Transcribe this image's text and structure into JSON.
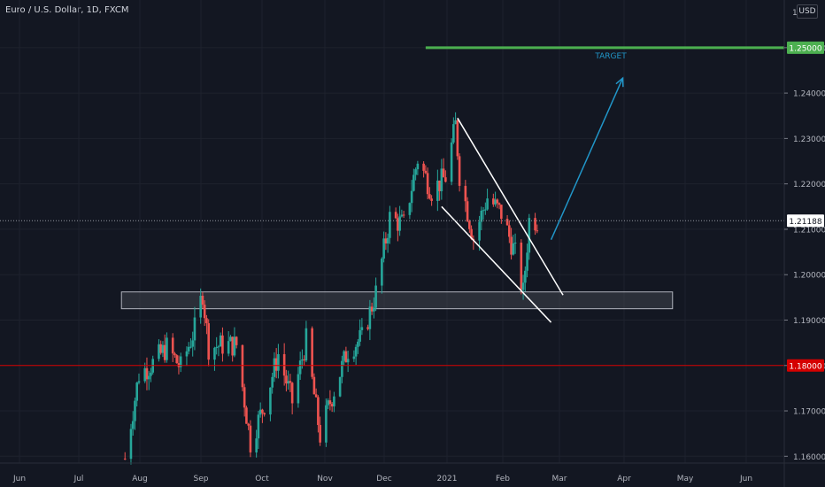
{
  "symbol_title": "Euro / U.S. Dollar, 1D, FXCM",
  "currency_button": "USD",
  "price_axis_top_label": "1",
  "colors": {
    "background": "#131722",
    "up": "#26a69a",
    "down": "#ef5350",
    "target_line": "#4caf50",
    "support_line": "#d50000",
    "projection_arrow": "#2196c9",
    "channel_lines": "#ffffff",
    "zone_fill": "#4a4d56"
  },
  "annotations": {
    "target_label": "TARGET",
    "target_price_label": "1.25000",
    "support_price_label": "1.18000",
    "current_price_label": "1.21188"
  },
  "chart_data": {
    "type": "candlestick",
    "x_axis_ticks": [
      "Jun",
      "Jul",
      "Aug",
      "Sep",
      "Oct",
      "Nov",
      "Dec",
      "2021",
      "Feb",
      "Mar",
      "Apr",
      "May",
      "Jun"
    ],
    "y_axis_ticks": [
      "1.16000",
      "1.17000",
      "1.18000",
      "1.19000",
      "1.20000",
      "1.21000",
      "1.22000",
      "1.23000",
      "1.24000",
      "1.25000"
    ],
    "ylim": [
      1.1585,
      1.2605
    ],
    "target_price": 1.25,
    "support_price": 1.18,
    "current_price": 1.21188,
    "zone": [
      1.1925,
      1.1962
    ],
    "series": [
      {
        "date": "2020-07-24",
        "close": 1.1595
      },
      {
        "date": "2020-07-31",
        "close": 1.178
      },
      {
        "date": "2020-08-07",
        "close": 1.1805
      },
      {
        "date": "2020-08-14",
        "close": 1.184
      },
      {
        "date": "2020-08-21",
        "close": 1.1795
      },
      {
        "date": "2020-08-28",
        "close": 1.188
      },
      {
        "date": "2020-09-01",
        "close": 1.196
      },
      {
        "date": "2020-09-04",
        "close": 1.184
      },
      {
        "date": "2020-09-11",
        "close": 1.1845
      },
      {
        "date": "2020-09-18",
        "close": 1.1845
      },
      {
        "date": "2020-09-25",
        "close": 1.163
      },
      {
        "date": "2020-10-02",
        "close": 1.1715
      },
      {
        "date": "2020-10-09",
        "close": 1.1825
      },
      {
        "date": "2020-10-16",
        "close": 1.172
      },
      {
        "date": "2020-10-23",
        "close": 1.1855
      },
      {
        "date": "2020-10-30",
        "close": 1.1645
      },
      {
        "date": "2020-11-04",
        "close": 1.172
      },
      {
        "date": "2020-11-13",
        "close": 1.1835
      },
      {
        "date": "2020-11-20",
        "close": 1.186
      },
      {
        "date": "2020-11-27",
        "close": 1.196
      },
      {
        "date": "2020-12-04",
        "close": 1.2125
      },
      {
        "date": "2020-12-11",
        "close": 1.211
      },
      {
        "date": "2020-12-18",
        "close": 1.2255
      },
      {
        "date": "2020-12-25",
        "close": 1.2185
      },
      {
        "date": "2021-01-01",
        "close": 1.2215
      },
      {
        "date": "2021-01-06",
        "close": 1.233
      },
      {
        "date": "2021-01-08",
        "close": 1.222
      },
      {
        "date": "2021-01-15",
        "close": 1.208
      },
      {
        "date": "2021-01-22",
        "close": 1.217
      },
      {
        "date": "2021-01-29",
        "close": 1.2135
      },
      {
        "date": "2021-02-05",
        "close": 1.2045
      },
      {
        "date": "2021-02-09",
        "close": 1.196
      },
      {
        "date": "2021-02-12",
        "close": 1.212
      },
      {
        "date": "2021-02-16",
        "close": 1.212
      }
    ]
  }
}
